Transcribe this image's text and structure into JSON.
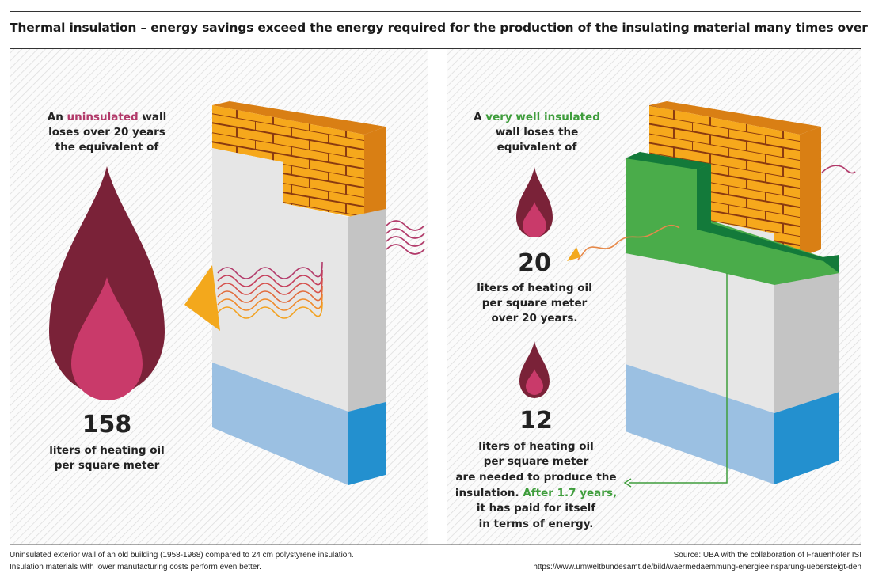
{
  "title": "Thermal insulation – energy savings exceed the energy required for the production of the insulating material many times over",
  "colors": {
    "red_accent": "#b23a6a",
    "green_accent": "#3f9d3c",
    "drop_outer": "#7a2238",
    "drop_inner": "#c93a6a",
    "brick": "#f6a81c",
    "wall": "#e6e6e6",
    "blue": "#9bc0e2",
    "insulation": "#4aac4a"
  },
  "left": {
    "line1_pre": "An ",
    "line1_accent": "uninsulated",
    "line1_post": " wall",
    "line2": "loses over 20 years",
    "line3": "the equivalent of",
    "value": "158",
    "unit1": "liters of heating oil",
    "unit2": "per square meter"
  },
  "right": {
    "line1_pre": "A ",
    "line1_accent": "very well insulated",
    "line2": "wall loses the",
    "line3": "equivalent of",
    "value1": "20",
    "v1_line1": "liters of heating oil",
    "v1_line2": "per square meter",
    "v1_line3": "over 20 years.",
    "value2": "12",
    "v2_line1": "liters of heating oil",
    "v2_line2": "per square meter",
    "v2_line3": "are needed to produce the",
    "v2_line4_pre": "insulation. ",
    "v2_line4_accent": "After 1.7 years,",
    "v2_line5": "it has paid for itself",
    "v2_line6_accent": "in terms of energy."
  },
  "footer": {
    "note1": "Uninsulated exterior wall of an old building (1958-1968) compared to 24 cm polystyrene insulation.",
    "note2": "Insulation materials with lower manufacturing costs perform even better.",
    "source": "Source: UBA with the collaboration of Frauenhofer ISI",
    "url": "https://www.umweltbundesamt.de/bild/waermedaemmung-energieeinsparung-uebersteigt-den"
  }
}
